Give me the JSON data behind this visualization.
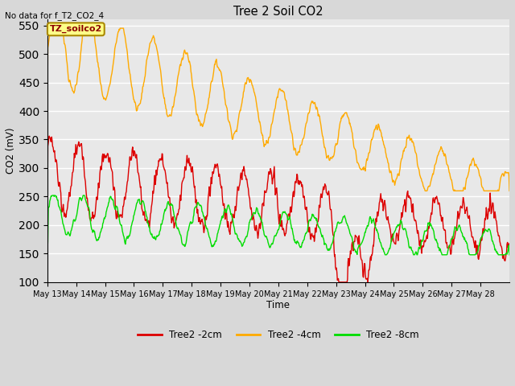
{
  "title": "Tree 2 Soil CO2",
  "subtitle": "No data for f_T2_CO2_4",
  "xlabel": "Time",
  "ylabel": "CO2 (mV)",
  "ylim": [
    100,
    560
  ],
  "yticks": [
    100,
    150,
    200,
    250,
    300,
    350,
    400,
    450,
    500,
    550
  ],
  "xtick_labels": [
    "May 13",
    "May 14",
    "May 15",
    "May 16",
    "May 17",
    "May 18",
    "May 19",
    "May 20",
    "May 21",
    "May 22",
    "May 23",
    "May 24",
    "May 25",
    "May 26",
    "May 27",
    "May 28"
  ],
  "legend_labels": [
    "Tree2 -2cm",
    "Tree2 -4cm",
    "Tree2 -8cm"
  ],
  "colors": {
    "red": "#dd0000",
    "orange": "#ffaa00",
    "green": "#00dd00"
  },
  "bg_color": "#d8d8d8",
  "plot_bg": "#e8e8e8",
  "annotation_box": {
    "text": "TZ_soilco2",
    "bg": "#ffff88",
    "border": "#aa8800"
  },
  "line_width": 1.0
}
